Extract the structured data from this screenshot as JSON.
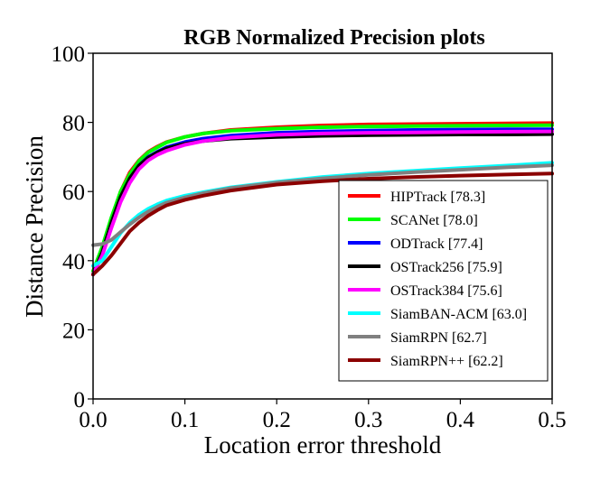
{
  "chart_data": {
    "type": "line",
    "title": "RGB Normalized Precision plots",
    "xlabel": "Location error threshold",
    "ylabel": "Distance Precision",
    "xlim": [
      0,
      0.5
    ],
    "ylim": [
      0,
      100
    ],
    "x_ticks": [
      "0.0",
      "0.1",
      "0.2",
      "0.3",
      "0.4",
      "0.5"
    ],
    "y_ticks": [
      "0",
      "20",
      "40",
      "60",
      "80",
      "100"
    ],
    "grid": false,
    "legend_position": "lower-right",
    "series": [
      {
        "name": "HIPTrack [78.3]",
        "color": "#ff0000",
        "points": [
          [
            0,
            36
          ],
          [
            0.01,
            43
          ],
          [
            0.02,
            52
          ],
          [
            0.03,
            60
          ],
          [
            0.04,
            65.5
          ],
          [
            0.05,
            69
          ],
          [
            0.06,
            71.5
          ],
          [
            0.07,
            73
          ],
          [
            0.08,
            74.3
          ],
          [
            0.1,
            75.8
          ],
          [
            0.12,
            76.8
          ],
          [
            0.15,
            77.8
          ],
          [
            0.2,
            78.6
          ],
          [
            0.25,
            79.1
          ],
          [
            0.3,
            79.4
          ],
          [
            0.35,
            79.5
          ],
          [
            0.4,
            79.6
          ],
          [
            0.45,
            79.7
          ],
          [
            0.5,
            79.8
          ]
        ]
      },
      {
        "name": "SCANet [78.0]",
        "color": "#00ff00",
        "points": [
          [
            0,
            37
          ],
          [
            0.01,
            44
          ],
          [
            0.02,
            52.5
          ],
          [
            0.03,
            60
          ],
          [
            0.04,
            65
          ],
          [
            0.05,
            68.8
          ],
          [
            0.06,
            71.3
          ],
          [
            0.07,
            72.8
          ],
          [
            0.08,
            74.2
          ],
          [
            0.1,
            75.8
          ],
          [
            0.12,
            76.8
          ],
          [
            0.15,
            77.6
          ],
          [
            0.2,
            78.2
          ],
          [
            0.25,
            78.6
          ],
          [
            0.3,
            78.8
          ],
          [
            0.35,
            78.9
          ],
          [
            0.4,
            79
          ],
          [
            0.45,
            79.1
          ],
          [
            0.5,
            79.2
          ]
        ]
      },
      {
        "name": "ODTrack [77.4]",
        "color": "#0000ff",
        "points": [
          [
            0,
            36
          ],
          [
            0.01,
            42
          ],
          [
            0.02,
            50
          ],
          [
            0.03,
            58
          ],
          [
            0.04,
            63.5
          ],
          [
            0.05,
            67.5
          ],
          [
            0.06,
            70
          ],
          [
            0.07,
            71.5
          ],
          [
            0.08,
            72.8
          ],
          [
            0.1,
            74.3
          ],
          [
            0.12,
            75.3
          ],
          [
            0.15,
            76.2
          ],
          [
            0.2,
            77
          ],
          [
            0.25,
            77.4
          ],
          [
            0.3,
            77.6
          ],
          [
            0.35,
            77.8
          ],
          [
            0.4,
            77.9
          ],
          [
            0.45,
            78
          ],
          [
            0.5,
            78
          ]
        ]
      },
      {
        "name": "OSTrack256 [75.9]",
        "color": "#000000",
        "points": [
          [
            0,
            36
          ],
          [
            0.01,
            42.5
          ],
          [
            0.02,
            51
          ],
          [
            0.03,
            58.5
          ],
          [
            0.04,
            63.8
          ],
          [
            0.05,
            67.5
          ],
          [
            0.06,
            69.8
          ],
          [
            0.07,
            71.3
          ],
          [
            0.08,
            72.5
          ],
          [
            0.1,
            73.8
          ],
          [
            0.12,
            74.6
          ],
          [
            0.15,
            75.3
          ],
          [
            0.2,
            75.8
          ],
          [
            0.25,
            76.1
          ],
          [
            0.3,
            76.3
          ],
          [
            0.35,
            76.4
          ],
          [
            0.4,
            76.5
          ],
          [
            0.45,
            76.5
          ],
          [
            0.5,
            76.6
          ]
        ]
      },
      {
        "name": "OSTrack384 [75.6]",
        "color": "#ff00ff",
        "points": [
          [
            0,
            36
          ],
          [
            0.01,
            41.5
          ],
          [
            0.02,
            49.5
          ],
          [
            0.03,
            57
          ],
          [
            0.04,
            62.5
          ],
          [
            0.05,
            66.5
          ],
          [
            0.06,
            69
          ],
          [
            0.07,
            70.6
          ],
          [
            0.08,
            71.8
          ],
          [
            0.1,
            73.5
          ],
          [
            0.12,
            74.6
          ],
          [
            0.15,
            75.6
          ],
          [
            0.2,
            76.4
          ],
          [
            0.25,
            76.8
          ],
          [
            0.3,
            77
          ],
          [
            0.35,
            77.1
          ],
          [
            0.4,
            77.2
          ],
          [
            0.45,
            77.3
          ],
          [
            0.5,
            77.4
          ]
        ]
      },
      {
        "name": "SiamBAN-ACM [63.0]",
        "color": "#00ffff",
        "points": [
          [
            0,
            38.5
          ],
          [
            0.01,
            40
          ],
          [
            0.02,
            44
          ],
          [
            0.03,
            48
          ],
          [
            0.04,
            51
          ],
          [
            0.05,
            53.3
          ],
          [
            0.06,
            55
          ],
          [
            0.07,
            56.3
          ],
          [
            0.08,
            57.4
          ],
          [
            0.1,
            58.8
          ],
          [
            0.12,
            59.8
          ],
          [
            0.15,
            61.2
          ],
          [
            0.2,
            62.8
          ],
          [
            0.25,
            64.2
          ],
          [
            0.3,
            65.2
          ],
          [
            0.35,
            66
          ],
          [
            0.4,
            66.8
          ],
          [
            0.45,
            67.5
          ],
          [
            0.5,
            68.3
          ]
        ]
      },
      {
        "name": "SiamRPN [62.7]",
        "color": "#808080",
        "points": [
          [
            0,
            44.5
          ],
          [
            0.01,
            44.8
          ],
          [
            0.02,
            46
          ],
          [
            0.03,
            48.3
          ],
          [
            0.04,
            50.5
          ],
          [
            0.05,
            52.5
          ],
          [
            0.06,
            54.2
          ],
          [
            0.07,
            55.6
          ],
          [
            0.08,
            56.8
          ],
          [
            0.1,
            58.3
          ],
          [
            0.12,
            59.5
          ],
          [
            0.15,
            61
          ],
          [
            0.2,
            62.6
          ],
          [
            0.25,
            63.8
          ],
          [
            0.3,
            64.8
          ],
          [
            0.35,
            65.6
          ],
          [
            0.4,
            66.3
          ],
          [
            0.45,
            67
          ],
          [
            0.5,
            67.6
          ]
        ]
      },
      {
        "name": "SiamRPN++ [62.2]",
        "color": "#8b0000",
        "points": [
          [
            0,
            36
          ],
          [
            0.01,
            38.5
          ],
          [
            0.02,
            41.5
          ],
          [
            0.03,
            45
          ],
          [
            0.04,
            48.5
          ],
          [
            0.05,
            51
          ],
          [
            0.06,
            53
          ],
          [
            0.07,
            54.6
          ],
          [
            0.08,
            56
          ],
          [
            0.1,
            57.6
          ],
          [
            0.12,
            58.8
          ],
          [
            0.15,
            60.3
          ],
          [
            0.2,
            62
          ],
          [
            0.25,
            63
          ],
          [
            0.3,
            63.7
          ],
          [
            0.35,
            64.2
          ],
          [
            0.4,
            64.6
          ],
          [
            0.45,
            64.9
          ],
          [
            0.5,
            65.2
          ]
        ]
      }
    ]
  }
}
